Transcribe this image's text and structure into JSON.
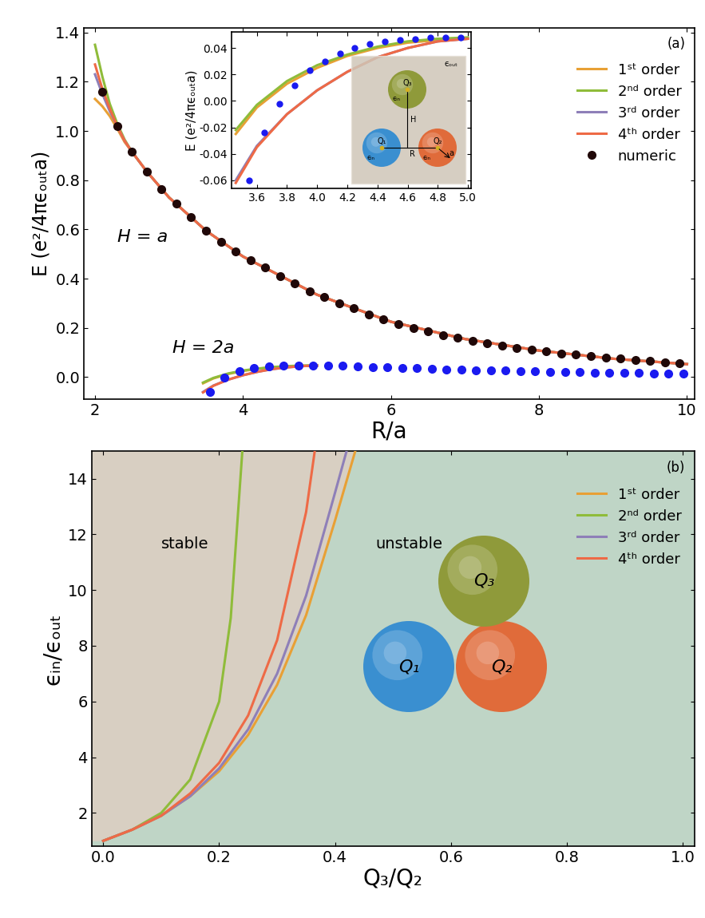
{
  "chart_data": [
    {
      "type": "line",
      "panel_label": "(a)",
      "x_label": "R/a",
      "y_label": "E (e²/4πϵₒᵤₜa)",
      "xlim": [
        1.85,
        10.1
      ],
      "ylim": [
        -0.09,
        1.42
      ],
      "xticks": [
        2,
        4,
        6,
        8,
        10
      ],
      "yticks": [
        0.0,
        0.2,
        0.4,
        0.6,
        0.8,
        1.0,
        1.2,
        1.4
      ],
      "legend": "upper right",
      "annotations": [
        {
          "text": "H = a",
          "x": 2.3,
          "y": 0.55
        },
        {
          "text": "H = 2a",
          "x": 3.05,
          "y": 0.1
        }
      ],
      "series": [
        {
          "name": "1ˢᵗ order",
          "color": "#e8a035",
          "type": "line",
          "line_style": "solid",
          "curves": [
            {
              "x": [
                2.0,
                2.1,
                2.2,
                2.3,
                2.4,
                2.5,
                2.7,
                3.0,
                3.5,
                4.0,
                5.0,
                6.0,
                7.0,
                8.0,
                9.0,
                10.0
              ],
              "values": [
                1.13,
                1.1,
                1.06,
                1.01,
                0.955,
                0.915,
                0.835,
                0.73,
                0.595,
                0.49,
                0.335,
                0.225,
                0.155,
                0.108,
                0.075,
                0.053
              ]
            },
            {
              "x": [
                3.46,
                3.6,
                3.8,
                4.0,
                4.2,
                4.4,
                4.6,
                4.8,
                5.0
              ],
              "values": [
                -0.025,
                -0.005,
                0.013,
                0.025,
                0.034,
                0.04,
                0.044,
                0.046,
                0.047
              ]
            }
          ]
        },
        {
          "name": "2ⁿᵈ order",
          "color": "#8fbc3a",
          "type": "line",
          "line_style": "solid",
          "curves": [
            {
              "x": [
                2.0,
                2.1,
                2.2,
                2.3,
                2.4,
                2.5,
                2.7,
                3.0,
                3.5,
                4.0,
                5.0,
                6.0,
                7.0,
                8.0,
                9.0,
                10.0
              ],
              "values": [
                1.35,
                1.22,
                1.11,
                1.03,
                0.965,
                0.915,
                0.835,
                0.73,
                0.595,
                0.49,
                0.335,
                0.225,
                0.155,
                0.108,
                0.075,
                0.053
              ]
            },
            {
              "x": [
                3.46,
                3.6,
                3.8,
                4.0,
                4.2,
                4.4,
                4.6,
                4.8,
                5.0
              ],
              "values": [
                -0.022,
                -0.003,
                0.015,
                0.027,
                0.035,
                0.041,
                0.045,
                0.047,
                0.048
              ]
            }
          ]
        },
        {
          "name": "3ʳᵈ order",
          "color": "#8e7fb8",
          "type": "line",
          "line_style": "solid",
          "curves": [
            {
              "x": [
                2.0,
                2.1,
                2.2,
                2.3,
                2.4,
                2.5,
                2.7,
                3.0,
                3.5,
                4.0,
                5.0,
                6.0,
                7.0,
                8.0,
                9.0,
                10.0
              ],
              "values": [
                1.23,
                1.15,
                1.08,
                1.02,
                0.96,
                0.915,
                0.835,
                0.73,
                0.595,
                0.49,
                0.335,
                0.225,
                0.155,
                0.108,
                0.075,
                0.053
              ]
            },
            {
              "x": [
                3.46,
                3.6,
                3.8,
                4.0,
                4.2,
                4.4,
                4.6,
                4.8,
                5.0
              ],
              "values": [
                -0.06,
                -0.034,
                -0.01,
                0.008,
                0.022,
                0.033,
                0.04,
                0.045,
                0.047
              ]
            }
          ]
        },
        {
          "name": "4ᵗʰ order",
          "color": "#ee6a46",
          "type": "line",
          "line_style": "solid",
          "curves": [
            {
              "x": [
                2.0,
                2.1,
                2.2,
                2.3,
                2.4,
                2.5,
                2.7,
                3.0,
                3.5,
                4.0,
                5.0,
                6.0,
                7.0,
                8.0,
                9.0,
                10.0
              ],
              "values": [
                1.27,
                1.17,
                1.09,
                1.02,
                0.96,
                0.915,
                0.835,
                0.73,
                0.595,
                0.49,
                0.335,
                0.225,
                0.155,
                0.108,
                0.075,
                0.053
              ]
            },
            {
              "x": [
                3.46,
                3.6,
                3.8,
                4.0,
                4.2,
                4.4,
                4.6,
                4.8,
                5.0
              ],
              "values": [
                -0.062,
                -0.035,
                -0.01,
                0.008,
                0.022,
                0.033,
                0.04,
                0.045,
                0.047
              ]
            }
          ]
        },
        {
          "name": "numeric",
          "type": "scatter",
          "marker": "o",
          "line_style": "none",
          "curves": [
            {
              "color": "#200808",
              "x": [
                2.1,
                2.3,
                2.5,
                2.7,
                2.9,
                3.1,
                3.3,
                3.5,
                3.7,
                3.9,
                4.1,
                4.3,
                4.5,
                4.7,
                4.9,
                5.1,
                5.3,
                5.5,
                5.7,
                5.9,
                6.1,
                6.3,
                6.5,
                6.7,
                6.9,
                7.1,
                7.3,
                7.5,
                7.7,
                7.9,
                8.1,
                8.3,
                8.5,
                8.7,
                8.9,
                9.1,
                9.3,
                9.5,
                9.7,
                9.9
              ],
              "values": [
                1.16,
                1.02,
                0.915,
                0.835,
                0.765,
                0.705,
                0.65,
                0.595,
                0.55,
                0.51,
                0.475,
                0.445,
                0.41,
                0.38,
                0.35,
                0.325,
                0.3,
                0.28,
                0.255,
                0.235,
                0.215,
                0.2,
                0.185,
                0.17,
                0.16,
                0.148,
                0.137,
                0.128,
                0.119,
                0.111,
                0.104,
                0.097,
                0.091,
                0.085,
                0.08,
                0.075,
                0.07,
                0.065,
                0.061,
                0.057
              ]
            },
            {
              "color": "#1a1af0",
              "x": [
                3.55,
                3.75,
                3.95,
                4.15,
                4.35,
                4.55,
                4.75,
                4.95,
                5.15,
                5.35,
                5.55,
                5.75,
                5.95,
                6.15,
                6.35,
                6.55,
                6.75,
                6.95,
                7.15,
                7.35,
                7.55,
                7.75,
                7.95,
                8.15,
                8.35,
                8.55,
                8.75,
                8.95,
                9.15,
                9.35,
                9.55,
                9.75,
                9.95
              ],
              "values": [
                -0.06,
                -0.002,
                0.023,
                0.036,
                0.043,
                0.046,
                0.048,
                0.048,
                0.047,
                0.046,
                0.044,
                0.042,
                0.04,
                0.038,
                0.036,
                0.034,
                0.032,
                0.03,
                0.029,
                0.027,
                0.026,
                0.025,
                0.024,
                0.022,
                0.021,
                0.02,
                0.019,
                0.019,
                0.018,
                0.017,
                0.016,
                0.016,
                0.015
              ]
            }
          ]
        }
      ]
    },
    {
      "type": "line",
      "y_label": "E (e²/4πϵₒᵤₜa)",
      "xlim": [
        3.43,
        5.02
      ],
      "ylim": [
        -0.066,
        0.052
      ],
      "xticks": [
        3.6,
        3.8,
        4.0,
        4.2,
        4.4,
        4.6,
        4.8,
        5.0
      ],
      "yticks": [
        -0.06,
        -0.04,
        -0.02,
        {
          "value": 0,
          "label": "0.00"
        },
        0.02,
        0.04
      ],
      "diagram": {
        "sphere_labels": [
          "Q₁",
          "Q₂",
          "Q₃"
        ],
        "inside": "ϵᵢₙ",
        "outside": "ϵₒᵤₜ",
        "height": "H",
        "distance": "R",
        "radius": "a"
      },
      "series": [
        {
          "name": "1ˢᵗ order",
          "color": "#e8a035",
          "type": "line",
          "line_style": "solid",
          "x": [
            3.46,
            3.6,
            3.8,
            4.0,
            4.2,
            4.4,
            4.6,
            4.8,
            5.0
          ],
          "values": [
            -0.025,
            -0.005,
            0.013,
            0.025,
            0.034,
            0.04,
            0.044,
            0.046,
            0.047
          ]
        },
        {
          "name": "2ⁿᵈ order",
          "color": "#8fbc3a",
          "type": "line",
          "line_style": "solid",
          "x": [
            3.46,
            3.6,
            3.8,
            4.0,
            4.2,
            4.4,
            4.6,
            4.8,
            5.0
          ],
          "values": [
            -0.022,
            -0.003,
            0.015,
            0.027,
            0.035,
            0.041,
            0.045,
            0.047,
            0.048
          ]
        },
        {
          "name": "3ʳᵈ order",
          "color": "#8e7fb8",
          "type": "line",
          "line_style": "solid",
          "x": [
            3.46,
            3.6,
            3.8,
            4.0,
            4.2,
            4.4,
            4.6,
            4.8,
            5.0
          ],
          "values": [
            -0.06,
            -0.034,
            -0.01,
            0.008,
            0.022,
            0.033,
            0.04,
            0.045,
            0.047
          ]
        },
        {
          "name": "4ᵗʰ order",
          "color": "#ee6a46",
          "type": "line",
          "line_style": "solid",
          "x": [
            3.46,
            3.6,
            3.8,
            4.0,
            4.2,
            4.4,
            4.6,
            4.8,
            5.0
          ],
          "values": [
            -0.062,
            -0.035,
            -0.01,
            0.008,
            0.022,
            0.033,
            0.04,
            0.045,
            0.047
          ]
        },
        {
          "name": "numeric",
          "color": "#1a1af0",
          "type": "scatter",
          "marker": "o",
          "line_style": "none",
          "x": [
            3.55,
            3.65,
            3.75,
            3.85,
            3.95,
            4.05,
            4.15,
            4.25,
            4.35,
            4.45,
            4.55,
            4.65,
            4.75,
            4.85,
            4.95
          ],
          "values": [
            -0.06,
            -0.024,
            -0.002,
            0.012,
            0.023,
            0.03,
            0.036,
            0.04,
            0.043,
            0.045,
            0.046,
            0.047,
            0.048,
            0.048,
            0.048
          ]
        }
      ]
    },
    {
      "type": "line",
      "panel_label": "(b)",
      "x_label": "Q₃/Q₂",
      "y_label": "ϵᵢₙ/ϵₒᵤₜ",
      "xlim": [
        -0.02,
        1.02
      ],
      "ylim": [
        0.8,
        15
      ],
      "xticks": [
        0.0,
        0.2,
        0.4,
        0.6,
        0.8,
        1.0
      ],
      "yticks": [
        2,
        4,
        6,
        8,
        10,
        12,
        14
      ],
      "legend": "upper right",
      "regions": [
        {
          "text": "stable",
          "color": "#d8cfc2",
          "x": 0.1,
          "y": 11.5
        },
        {
          "text": "unstable",
          "color": "#bfd5c6",
          "x": 0.47,
          "y": 11.5
        }
      ],
      "illustration": {
        "sphere_labels": [
          "Q₁",
          "Q₂",
          "Q₃"
        ]
      },
      "series": [
        {
          "name": "1ˢᵗ order",
          "color": "#e8a035",
          "type": "line",
          "line_style": "solid",
          "x": [
            0.0,
            0.05,
            0.1,
            0.15,
            0.2,
            0.25,
            0.3,
            0.35,
            0.4,
            0.435
          ],
          "values": [
            1.0,
            1.4,
            1.9,
            2.6,
            3.5,
            4.8,
            6.6,
            9.1,
            12.5,
            15.0
          ]
        },
        {
          "name": "2ⁿᵈ order",
          "color": "#8fbc3a",
          "type": "line",
          "line_style": "solid",
          "x": [
            0.0,
            0.05,
            0.1,
            0.15,
            0.2,
            0.22,
            0.24
          ],
          "values": [
            1.0,
            1.4,
            2.0,
            3.2,
            6.0,
            9.0,
            15.0
          ]
        },
        {
          "name": "3ʳᵈ order",
          "color": "#8e7fb8",
          "type": "line",
          "line_style": "solid",
          "x": [
            0.0,
            0.05,
            0.1,
            0.15,
            0.2,
            0.25,
            0.3,
            0.35,
            0.4,
            0.42
          ],
          "values": [
            1.0,
            1.4,
            1.9,
            2.6,
            3.6,
            5.0,
            7.0,
            9.8,
            13.5,
            15.0
          ]
        },
        {
          "name": "4ᵗʰ order",
          "color": "#ee6a46",
          "type": "line",
          "line_style": "solid",
          "x": [
            0.0,
            0.05,
            0.1,
            0.15,
            0.2,
            0.25,
            0.3,
            0.35,
            0.365
          ],
          "values": [
            1.0,
            1.4,
            1.9,
            2.7,
            3.8,
            5.5,
            8.2,
            12.8,
            15.0
          ]
        }
      ]
    }
  ]
}
